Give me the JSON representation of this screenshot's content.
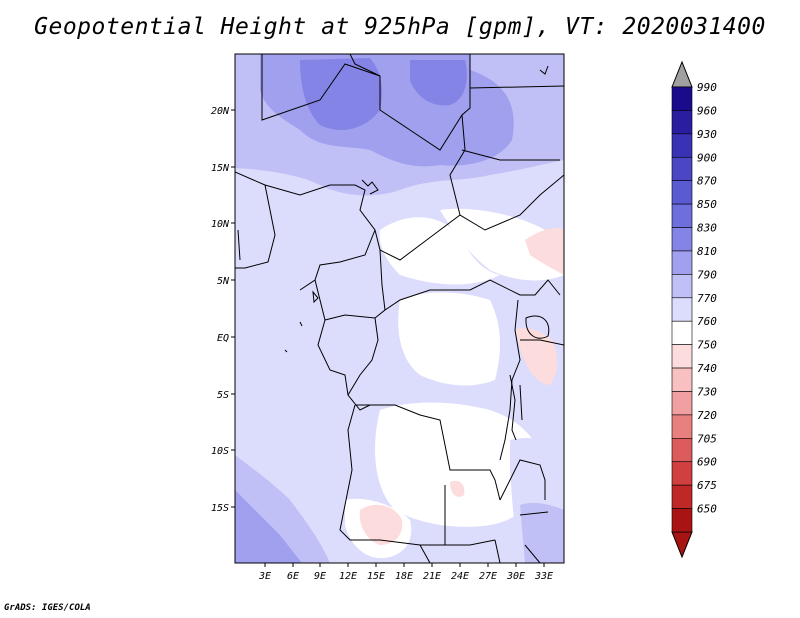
{
  "title": "Geopotential Height at 925hPa [gpm], VT: 2020031400",
  "footer": "GrADS: IGES/COLA",
  "map": {
    "lat_labels": [
      "20N",
      "15N",
      "10N",
      "5N",
      "EQ",
      "5S",
      "10S",
      "15S"
    ],
    "lon_labels": [
      "3E",
      "6E",
      "9E",
      "12E",
      "15E",
      "18E",
      "21E",
      "24E",
      "27E",
      "30E",
      "33E"
    ]
  },
  "colorbar": {
    "levels": [
      "990",
      "960",
      "930",
      "900",
      "870",
      "850",
      "830",
      "810",
      "790",
      "770",
      "760",
      "750",
      "740",
      "730",
      "720",
      "705",
      "690",
      "675",
      "650"
    ],
    "colors": [
      "#1a0a8c",
      "#2a1ea0",
      "#3a32b4",
      "#4a46c4",
      "#5a5ad2",
      "#6e6edc",
      "#8484e6",
      "#a0a0ee",
      "#c0c0f6",
      "#dcdcfc",
      "#ffffff",
      "#fcdcdc",
      "#f8c0c0",
      "#f0a0a0",
      "#e88080",
      "#dc5c5c",
      "#d04040",
      "#c02828",
      "#a81414"
    ],
    "top_arrow_color": "#a0a0a0"
  }
}
